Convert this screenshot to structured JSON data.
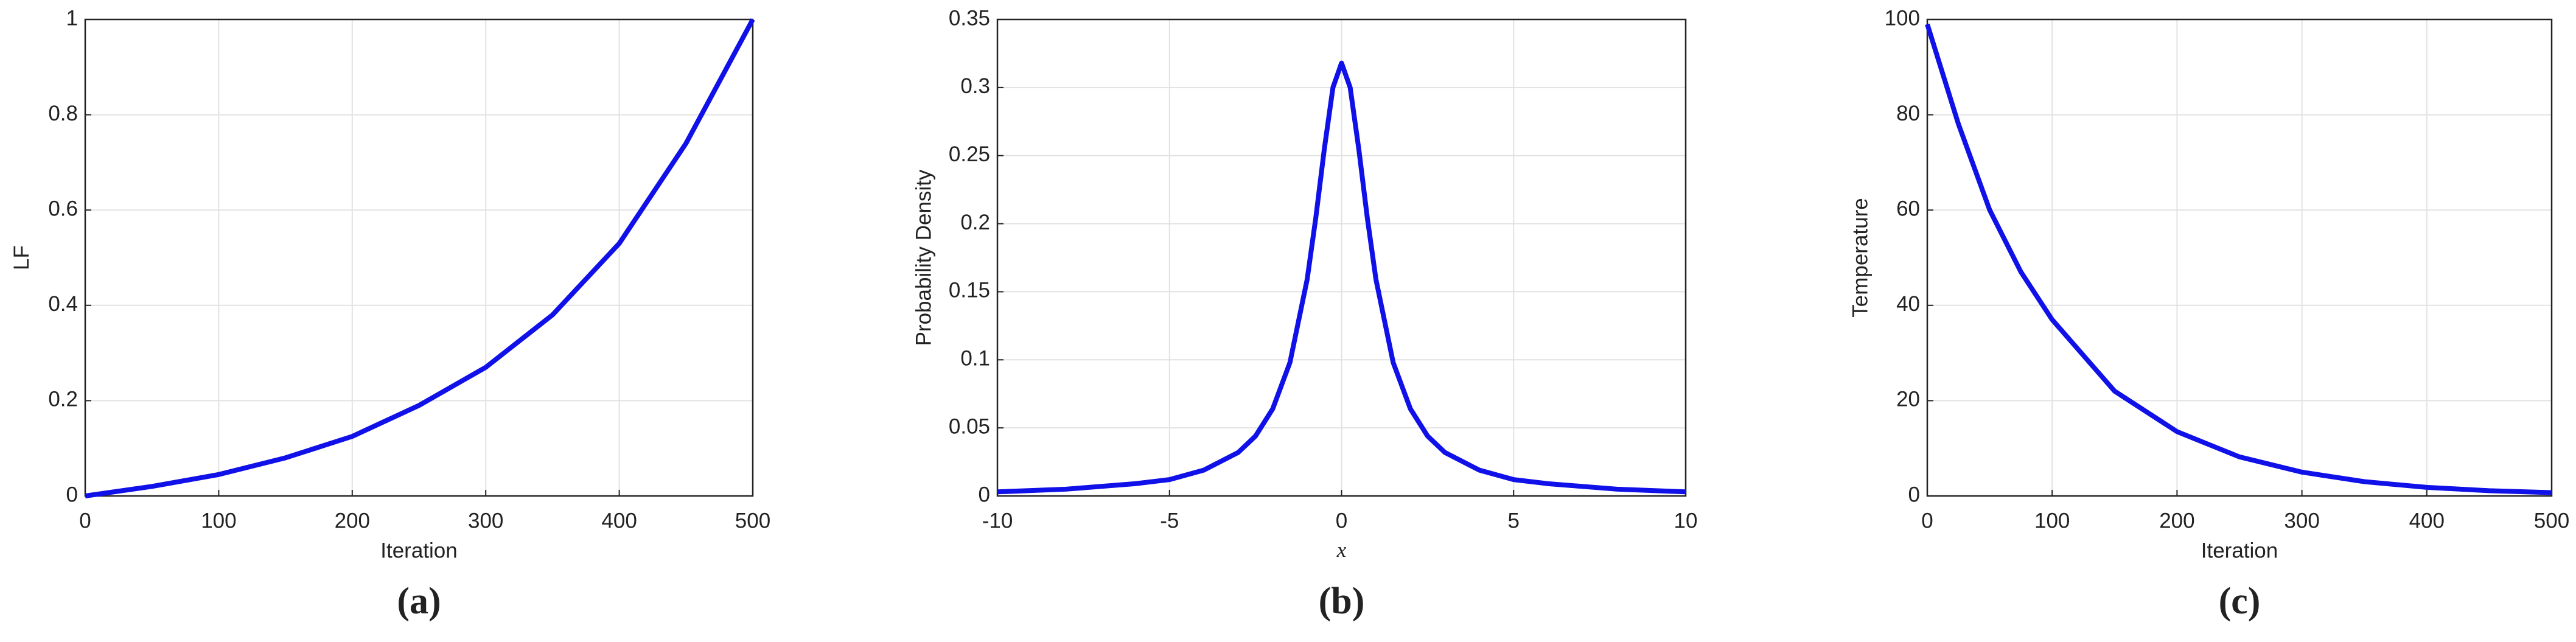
{
  "chart_data": [
    {
      "type": "line",
      "caption": "(a)",
      "xlabel": "Iteration",
      "ylabel": "LF",
      "color": "#1010e8",
      "grid": true,
      "x": [
        0,
        50,
        100,
        150,
        200,
        250,
        300,
        350,
        400,
        450,
        500
      ],
      "values": [
        0,
        0.02,
        0.045,
        0.08,
        0.125,
        0.19,
        0.27,
        0.38,
        0.53,
        0.74,
        1.0
      ],
      "xlim": [
        0,
        500
      ],
      "xticks": [
        0,
        100,
        200,
        300,
        400,
        500
      ],
      "ylim": [
        0,
        1
      ],
      "yticks": [
        0,
        0.2,
        0.4,
        0.6,
        0.8,
        1
      ]
    },
    {
      "type": "line",
      "caption": "(b)",
      "xlabel": "x",
      "ylabel": "Probability Density",
      "color": "#1010e8",
      "grid": true,
      "x": [
        -10,
        -8,
        -6,
        -5,
        -4,
        -3,
        -2.5,
        -2,
        -1.5,
        -1,
        -0.75,
        -0.5,
        -0.25,
        0,
        0.25,
        0.5,
        0.75,
        1,
        1.5,
        2,
        2.5,
        3,
        4,
        5,
        6,
        8,
        10
      ],
      "values": [
        0.003,
        0.005,
        0.009,
        0.012,
        0.019,
        0.032,
        0.044,
        0.064,
        0.098,
        0.159,
        0.204,
        0.255,
        0.3,
        0.318,
        0.3,
        0.255,
        0.204,
        0.159,
        0.098,
        0.064,
        0.044,
        0.032,
        0.019,
        0.012,
        0.009,
        0.005,
        0.003
      ],
      "xlim": [
        -10,
        10
      ],
      "xticks": [
        -10,
        -5,
        0,
        5,
        10
      ],
      "ylim": [
        0,
        0.35
      ],
      "yticks": [
        0,
        0.05,
        0.1,
        0.15,
        0.2,
        0.25,
        0.3,
        0.35
      ]
    },
    {
      "type": "line",
      "caption": "(c)",
      "xlabel": "Iteration",
      "ylabel": "Temperature",
      "color": "#1010e8",
      "grid": true,
      "x": [
        0,
        25,
        50,
        75,
        100,
        150,
        200,
        250,
        300,
        350,
        400,
        450,
        500
      ],
      "values": [
        99,
        78,
        60,
        47,
        37,
        22,
        13.5,
        8.2,
        5,
        3,
        1.8,
        1.1,
        0.7
      ],
      "xlim": [
        0,
        500
      ],
      "xticks": [
        0,
        100,
        200,
        300,
        400,
        500
      ],
      "ylim": [
        0,
        100
      ],
      "yticks": [
        0,
        20,
        40,
        60,
        80,
        100
      ]
    }
  ]
}
